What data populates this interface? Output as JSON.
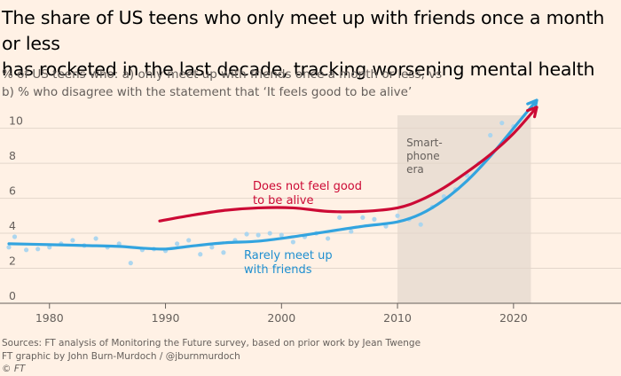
{
  "title_lines": [
    "The share of US teens who only meet up with friends once a month or less",
    "has rocketed in the last decade, tracking worsening mental health"
  ],
  "subtitle_lines": [
    "% of US teens who: a) only meet up with friends once a month or less, vs",
    "b) % who disagree with the statement that ‘It feels good to be alive’"
  ],
  "chart_data": {
    "type": "line",
    "xlim": [
      1976.5,
      2022
    ],
    "ylim": [
      0,
      11.5
    ],
    "x_ticks": [
      1980,
      1990,
      2000,
      2010,
      2020
    ],
    "y_ticks": [
      0,
      2,
      4,
      6,
      8,
      10
    ],
    "grid": "horizontal",
    "shaded_region": {
      "x": [
        2010,
        2021.5
      ],
      "label_lines": [
        "Smart-",
        "phone",
        "era"
      ],
      "color": "#ebdfd4"
    },
    "series": [
      {
        "name": "Does not feel good to be alive",
        "label_lines": [
          "Does not feel good",
          "to be alive"
        ],
        "color": "#cc0a35",
        "line": [
          [
            1989.5,
            4.7
          ],
          [
            1992,
            5.0
          ],
          [
            1995,
            5.3
          ],
          [
            1998,
            5.45
          ],
          [
            2001,
            5.45
          ],
          [
            2004,
            5.25
          ],
          [
            2007,
            5.25
          ],
          [
            2010,
            5.45
          ],
          [
            2012,
            5.9
          ],
          [
            2014,
            6.6
          ],
          [
            2016,
            7.5
          ],
          [
            2018,
            8.5
          ],
          [
            2020,
            9.7
          ],
          [
            2022,
            11.2
          ]
        ]
      },
      {
        "name": "Rarely meet up with friends",
        "label_lines": [
          "Rarely meet up",
          "with friends"
        ],
        "color": "#33a4df",
        "line": [
          [
            1976.5,
            3.4
          ],
          [
            1980,
            3.35
          ],
          [
            1983,
            3.3
          ],
          [
            1986,
            3.25
          ],
          [
            1988,
            3.15
          ],
          [
            1990,
            3.1
          ],
          [
            1992,
            3.25
          ],
          [
            1995,
            3.45
          ],
          [
            1998,
            3.55
          ],
          [
            2001,
            3.8
          ],
          [
            2004,
            4.1
          ],
          [
            2007,
            4.4
          ],
          [
            2010,
            4.65
          ],
          [
            2012,
            5.1
          ],
          [
            2014,
            5.9
          ],
          [
            2016,
            7.0
          ],
          [
            2018,
            8.4
          ],
          [
            2020,
            10.0
          ],
          [
            2022,
            11.6
          ]
        ],
        "points": [
          [
            1976.5,
            3.2
          ],
          [
            1977,
            3.8
          ],
          [
            1978,
            3.05
          ],
          [
            1979,
            3.1
          ],
          [
            1980,
            3.2
          ],
          [
            1981,
            3.4
          ],
          [
            1982,
            3.6
          ],
          [
            1983,
            3.3
          ],
          [
            1984,
            3.7
          ],
          [
            1985,
            3.2
          ],
          [
            1986,
            3.4
          ],
          [
            1987,
            2.3
          ],
          [
            1988,
            3.05
          ],
          [
            1989,
            3.1
          ],
          [
            1990,
            3.0
          ],
          [
            1991,
            3.4
          ],
          [
            1992,
            3.6
          ],
          [
            1993,
            2.8
          ],
          [
            1994,
            3.2
          ],
          [
            1995,
            2.9
          ],
          [
            1996,
            3.6
          ],
          [
            1997,
            3.95
          ],
          [
            1998,
            3.9
          ],
          [
            1999,
            4.0
          ],
          [
            2000,
            3.9
          ],
          [
            2001,
            3.5
          ],
          [
            2002,
            3.8
          ],
          [
            2003,
            4.0
          ],
          [
            2004,
            3.7
          ],
          [
            2005,
            4.9
          ],
          [
            2006,
            4.1
          ],
          [
            2007,
            4.9
          ],
          [
            2008,
            4.8
          ],
          [
            2009,
            4.4
          ],
          [
            2010,
            5.0
          ],
          [
            2011,
            4.8
          ],
          [
            2012,
            4.5
          ],
          [
            2013,
            5.5
          ],
          [
            2014,
            6.1
          ],
          [
            2015,
            6.5
          ],
          [
            2016,
            7.3
          ],
          [
            2017,
            8.0
          ],
          [
            2018,
            9.6
          ],
          [
            2019,
            10.3
          ],
          [
            2020,
            10.1
          ]
        ]
      }
    ]
  },
  "footer": {
    "sources": "Sources: FT analysis of Monitoring the Future survey, based on prior work by Jean Twenge",
    "credit": "FT graphic by John Burn-Murdoch / @jburnmurdoch",
    "copyright": "© FT"
  }
}
